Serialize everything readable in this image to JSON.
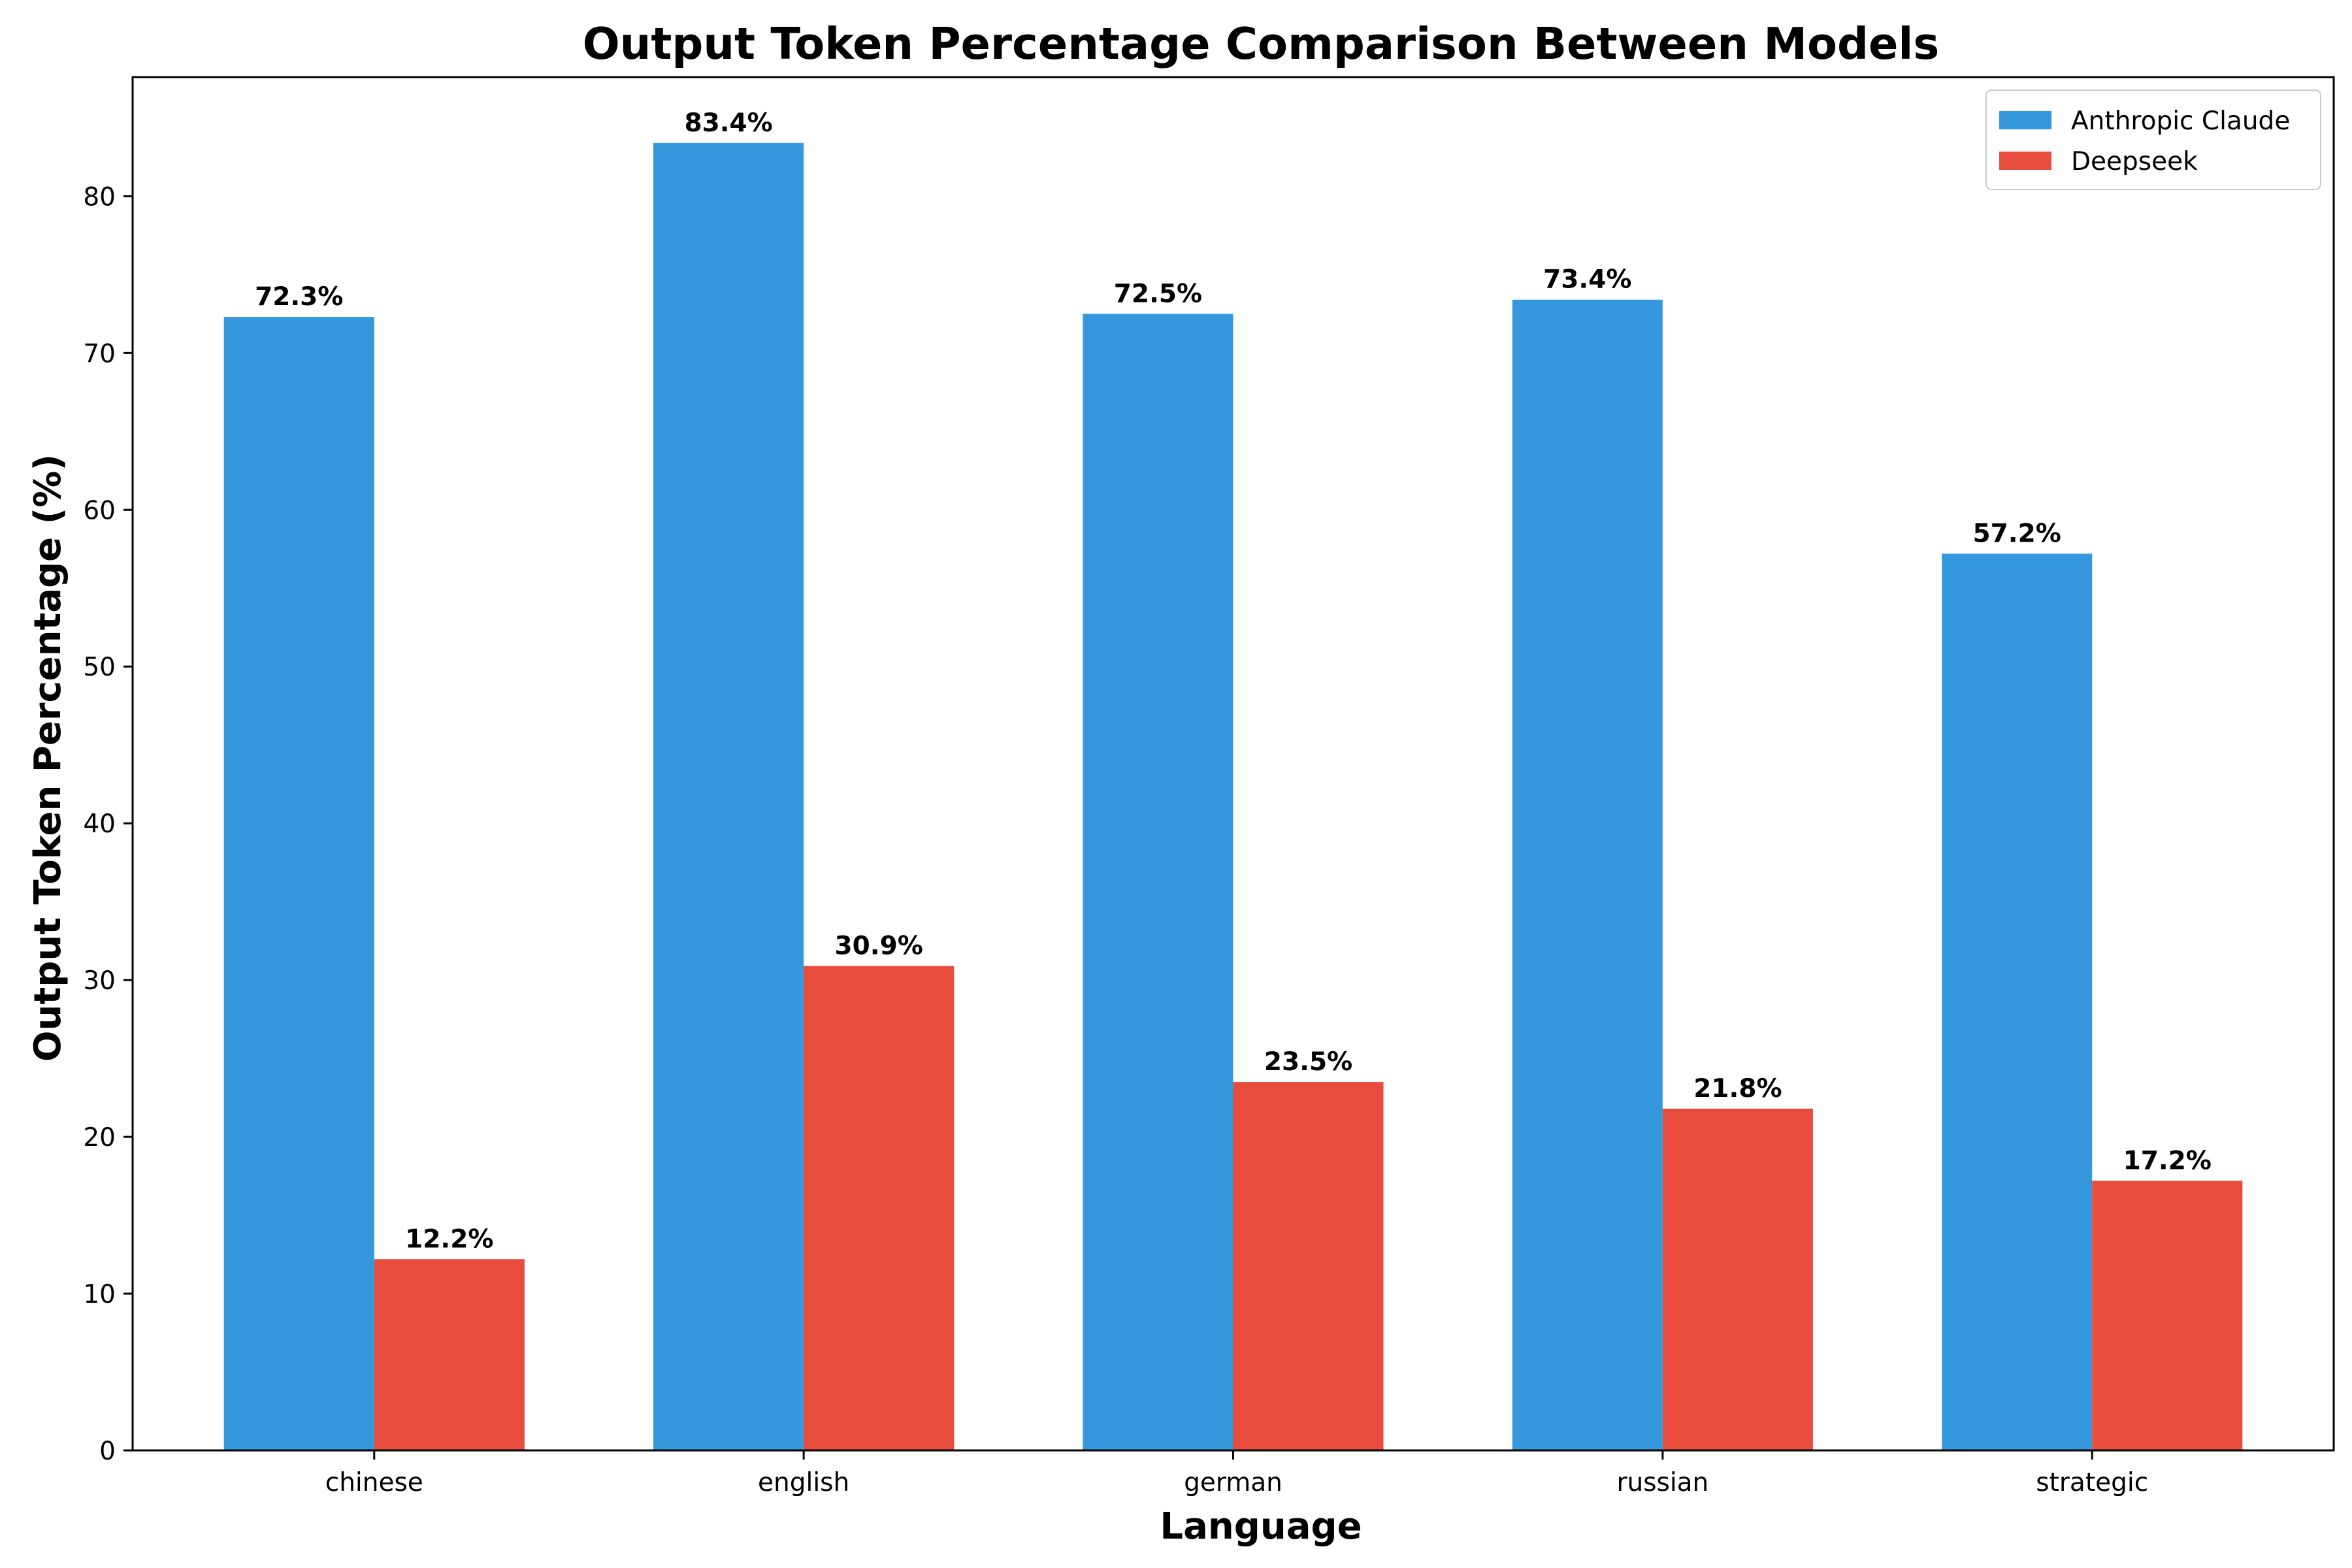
{
  "chart_data": {
    "type": "bar",
    "title": "Output Token Percentage Comparison Between Models",
    "xlabel": "Language",
    "ylabel": "Output Token Percentage (%)",
    "categories": [
      "chinese",
      "english",
      "german",
      "russian",
      "strategic"
    ],
    "series": [
      {
        "name": "Anthropic Claude",
        "color": "#3598dc",
        "values": [
          72.3,
          83.4,
          72.5,
          73.4,
          57.2
        ],
        "labels": [
          "72.3%",
          "83.4%",
          "72.5%",
          "73.4%",
          "57.2%"
        ]
      },
      {
        "name": "Deepseek",
        "color": "#e74c3c",
        "values": [
          12.2,
          30.9,
          23.5,
          21.8,
          17.2
        ],
        "labels": [
          "12.2%",
          "30.9%",
          "23.5%",
          "21.8%",
          "17.2%"
        ]
      }
    ],
    "ylim": [
      0,
      87.6
    ],
    "yticks": [
      0,
      10,
      20,
      30,
      40,
      50,
      60,
      70,
      80
    ],
    "ytick_labels": [
      "0",
      "10",
      "20",
      "30",
      "40",
      "50",
      "60",
      "70",
      "80"
    ],
    "grid": false,
    "legend_position": "top-right"
  }
}
